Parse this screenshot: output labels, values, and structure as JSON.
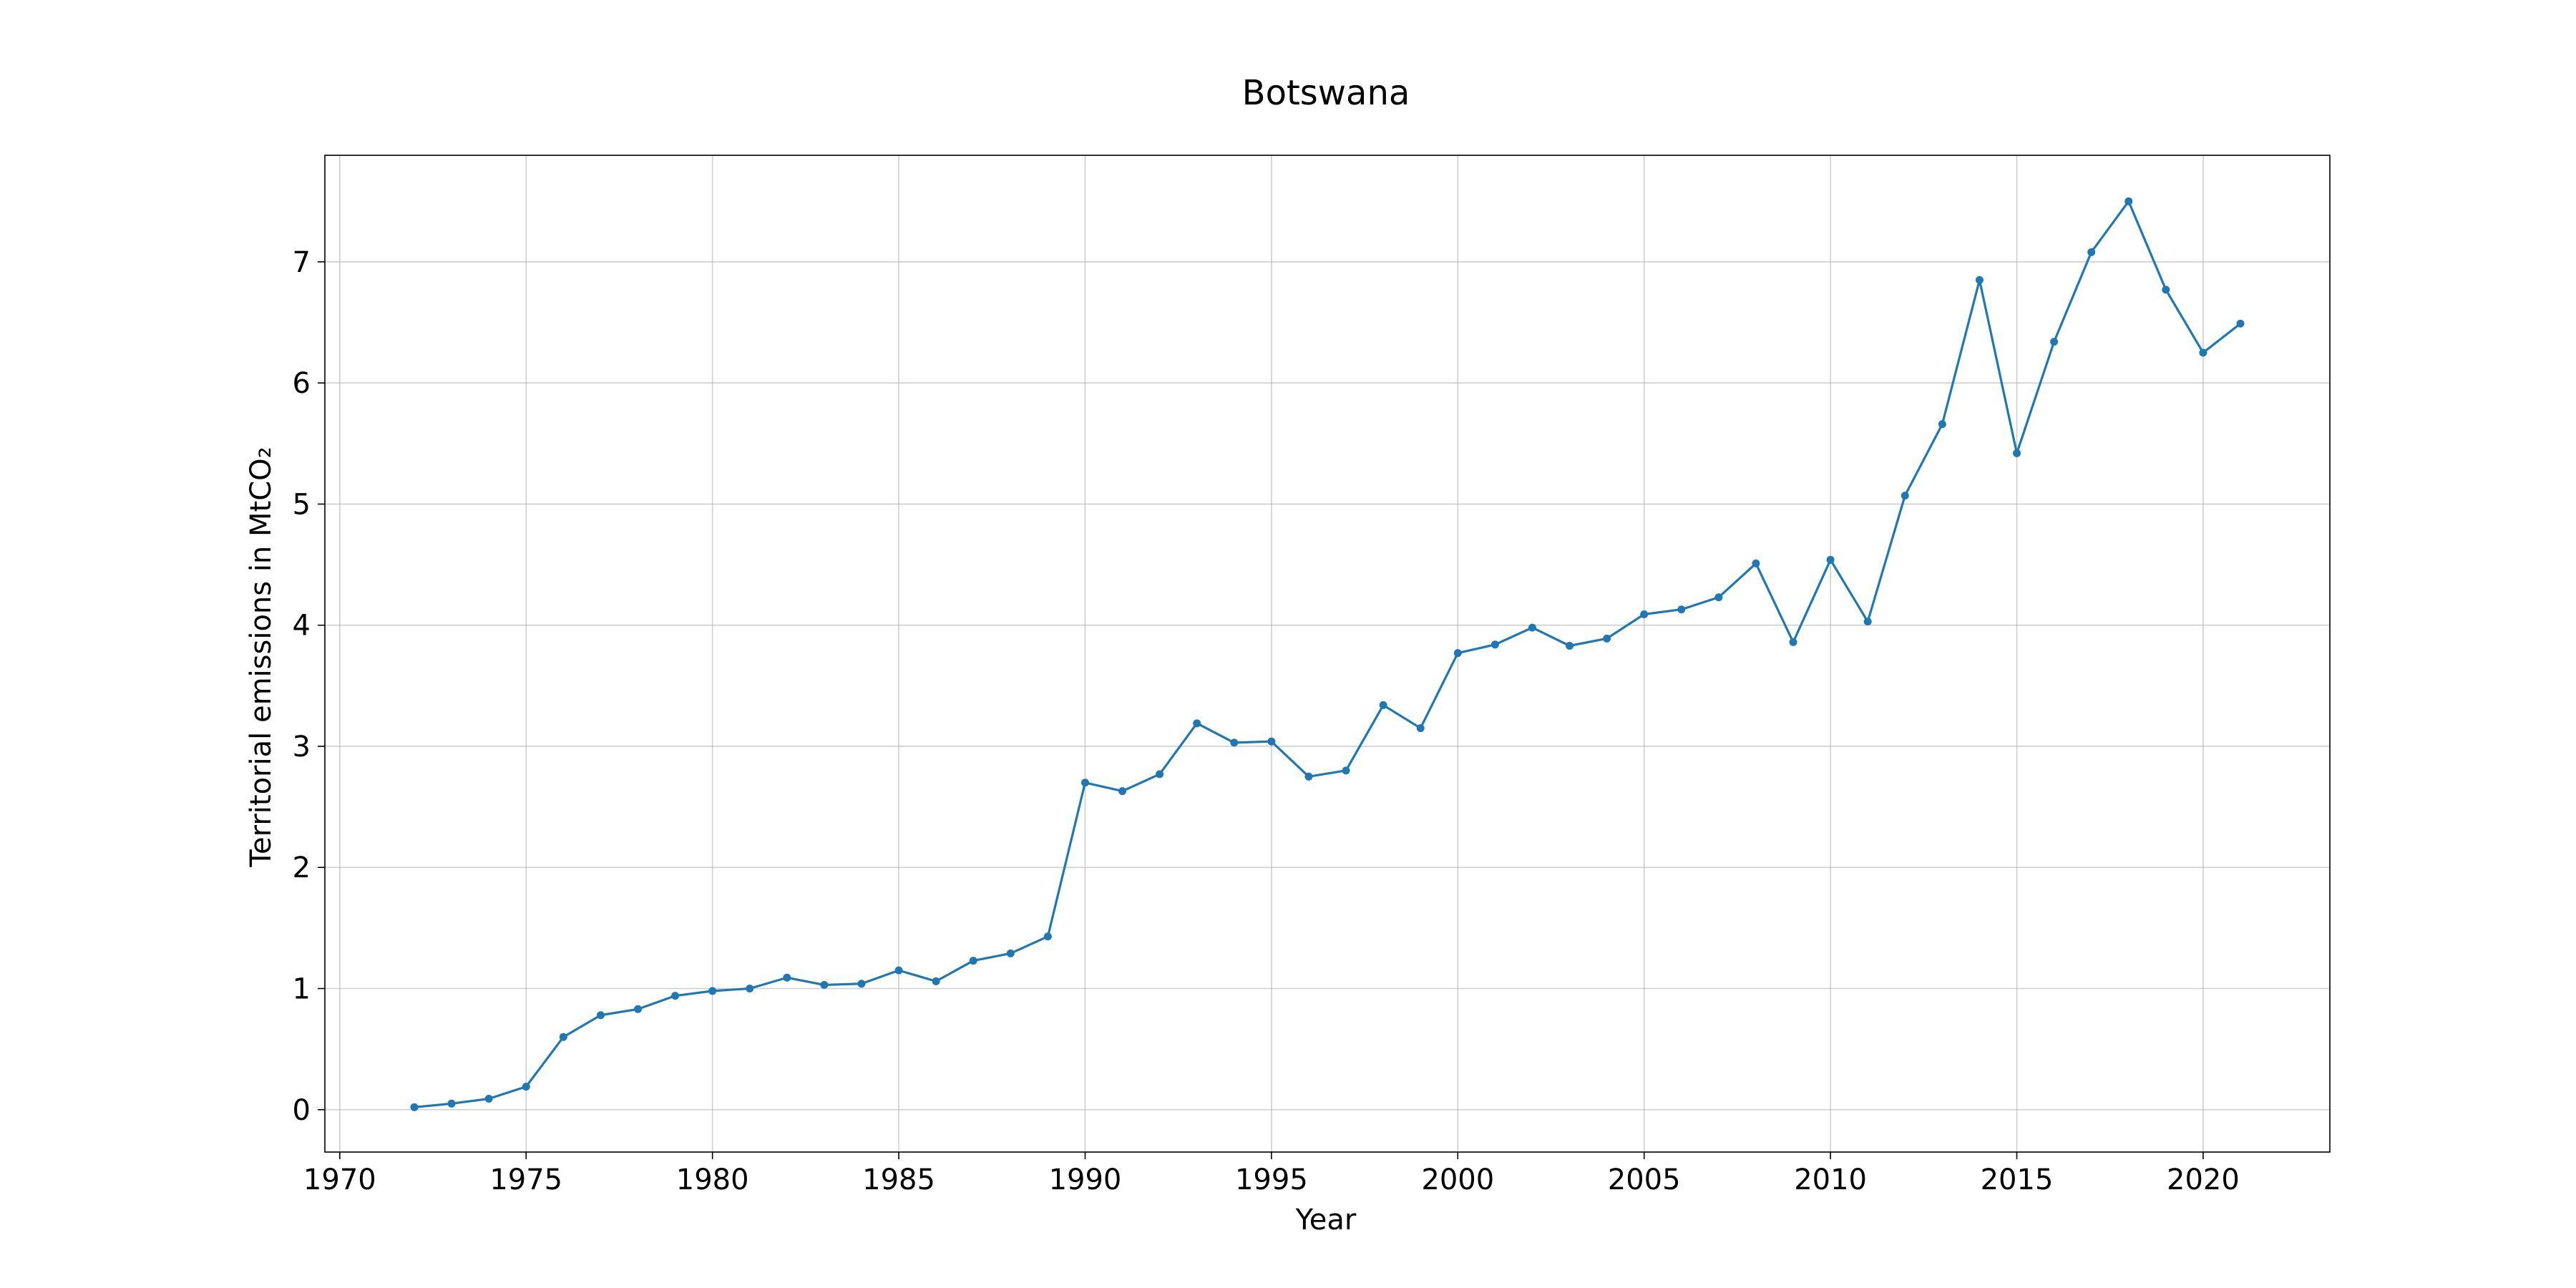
{
  "chart_data": {
    "type": "line",
    "title": "Botswana",
    "xlabel": "Year",
    "ylabel": "Territorial emissions in MtCO₂",
    "xlim": [
      1969.6,
      2023.4
    ],
    "ylim": [
      -0.35,
      7.88
    ],
    "xticks": [
      1970,
      1975,
      1980,
      1985,
      1990,
      1995,
      2000,
      2005,
      2010,
      2015,
      2020
    ],
    "yticks": [
      0,
      1,
      2,
      3,
      4,
      5,
      6,
      7
    ],
    "grid": true,
    "color": "#1f77b4",
    "series": [
      {
        "x": [
          1972,
          1973,
          1974,
          1975,
          1976,
          1977,
          1978,
          1979,
          1980,
          1981,
          1982,
          1983,
          1984,
          1985,
          1986,
          1987,
          1988,
          1989,
          1990,
          1991,
          1992,
          1993,
          1994,
          1995,
          1996,
          1997,
          1998,
          1999,
          2000,
          2001,
          2002,
          2003,
          2004,
          2005,
          2006,
          2007,
          2008,
          2009,
          2010,
          2011,
          2012,
          2013,
          2014,
          2015,
          2016,
          2017,
          2018,
          2019,
          2020,
          2021
        ],
        "values": [
          0.02,
          0.05,
          0.09,
          0.19,
          0.6,
          0.78,
          0.83,
          0.94,
          0.98,
          1.0,
          1.09,
          1.03,
          1.04,
          1.15,
          1.06,
          1.23,
          1.29,
          1.43,
          2.7,
          2.63,
          2.77,
          3.19,
          3.03,
          3.04,
          2.75,
          2.8,
          3.34,
          3.15,
          3.77,
          3.84,
          3.98,
          3.83,
          3.89,
          4.09,
          4.13,
          4.23,
          4.51,
          3.86,
          4.54,
          4.03,
          5.07,
          5.66,
          6.85,
          5.42,
          6.34,
          7.08,
          7.5,
          6.77,
          6.25,
          6.49
        ]
      }
    ]
  }
}
